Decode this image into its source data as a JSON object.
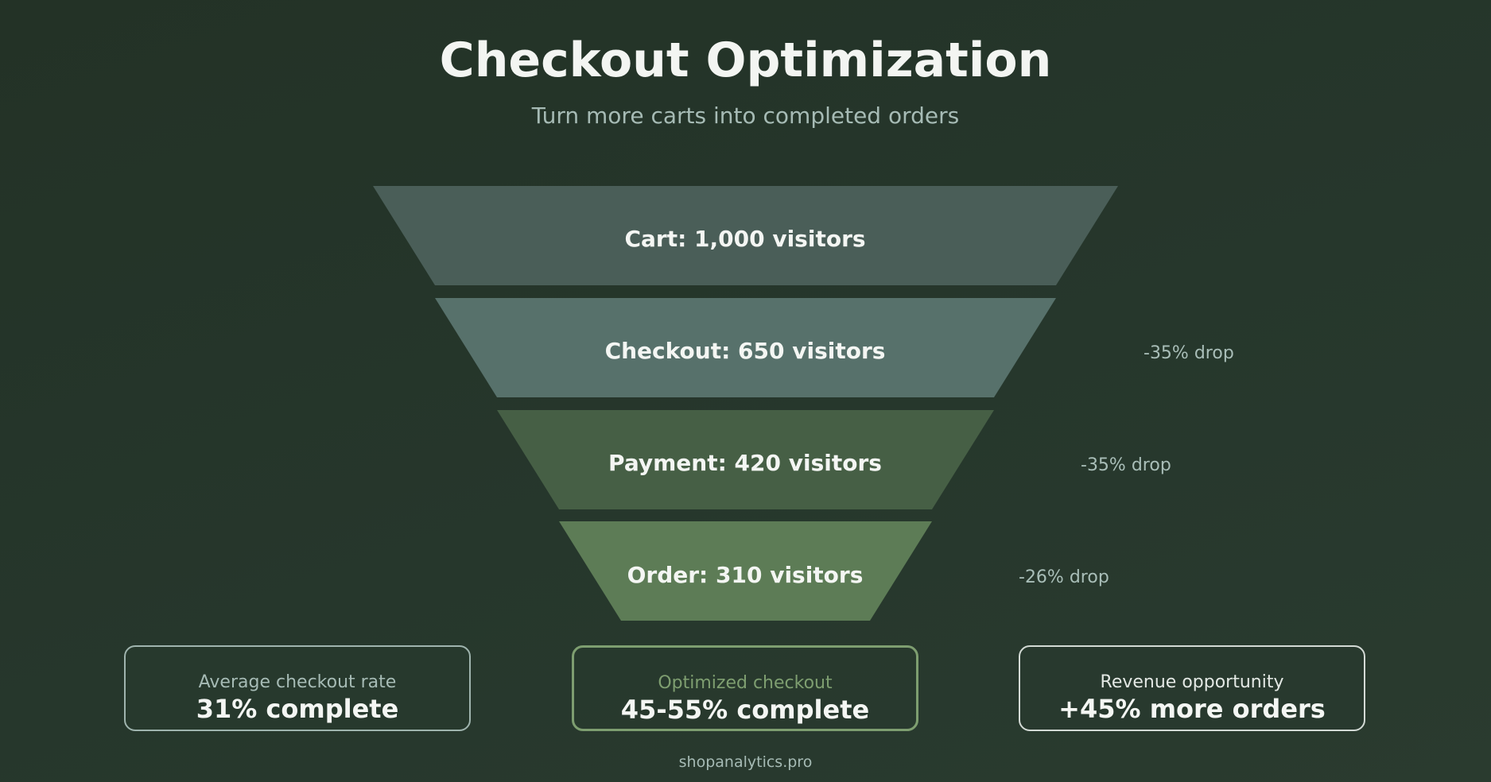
{
  "header": {
    "title": "Checkout Optimization",
    "subtitle": "Turn more carts into completed orders"
  },
  "funnel": {
    "stages": [
      {
        "label": "Cart: 1,000 visitors",
        "value": 1000,
        "color": "#4a5e58",
        "drop": ""
      },
      {
        "label": "Checkout: 650 visitors",
        "value": 650,
        "color": "#57716b",
        "drop": "-35% drop"
      },
      {
        "label": "Payment: 420 visitors",
        "value": 420,
        "color": "#465f45",
        "drop": "-35% drop"
      },
      {
        "label": "Order: 310 visitors",
        "value": 310,
        "color": "#5d7c56",
        "drop": "-26% drop"
      }
    ]
  },
  "cards": [
    {
      "caption": "Average checkout rate",
      "value": "31% complete",
      "border_color": "#9fb4ae",
      "caption_color": "#a6bbb5"
    },
    {
      "caption": "Optimized checkout",
      "value": "45-55% complete",
      "border_color": "#7e9e70",
      "caption_color": "#7e9e70"
    },
    {
      "caption": "Revenue opportunity",
      "value": "+45% more orders",
      "border_color": "#d3dad5",
      "caption_color": "#e3e8e4"
    }
  ],
  "footer": {
    "site": "shopanalytics.pro"
  }
}
